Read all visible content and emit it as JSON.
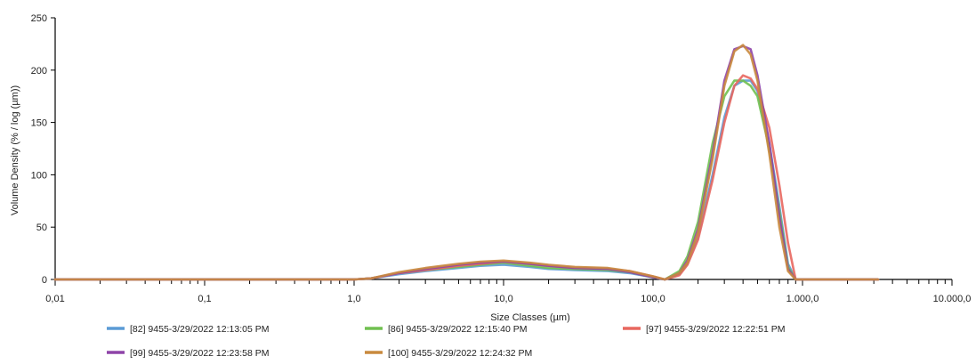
{
  "chart_data": {
    "type": "line",
    "xscale": "log",
    "xlim": [
      0.01,
      10000
    ],
    "ylim": [
      0,
      250
    ],
    "grid": false,
    "xlabel": "Size Classes (µm)",
    "ylabel": "Volume Density (% / log (µm))",
    "x_ticks": [
      {
        "value": 0.01,
        "label": "0,01"
      },
      {
        "value": 0.1,
        "label": "0,1"
      },
      {
        "value": 1,
        "label": "1,0"
      },
      {
        "value": 10,
        "label": "10,0"
      },
      {
        "value": 100,
        "label": "100,0"
      },
      {
        "value": 1000,
        "label": "1.000,0"
      },
      {
        "value": 10000,
        "label": "10.000,0"
      }
    ],
    "y_ticks": [
      {
        "value": 0,
        "label": "0"
      },
      {
        "value": 50,
        "label": "50"
      },
      {
        "value": 100,
        "label": "100"
      },
      {
        "value": 150,
        "label": "150"
      },
      {
        "value": 200,
        "label": "200"
      },
      {
        "value": 250,
        "label": "250"
      }
    ],
    "legend_position": "bottom",
    "series": [
      {
        "name": "[82] 9455-3/29/2022 12:13:05 PM",
        "color": "#5b9bd5",
        "x": [
          0.01,
          1.0,
          1.3,
          2,
          3,
          5,
          7,
          10,
          15,
          20,
          30,
          50,
          70,
          100,
          120,
          150,
          170,
          200,
          250,
          300,
          350,
          400,
          450,
          500,
          600,
          700,
          800,
          900,
          3200
        ],
        "y": [
          0,
          0,
          1,
          5,
          8,
          11,
          13,
          14,
          12,
          10,
          9,
          8,
          6,
          2,
          0,
          5,
          15,
          40,
          100,
          155,
          185,
          190,
          190,
          180,
          130,
          70,
          15,
          0,
          0
        ]
      },
      {
        "name": "[86] 9455-3/29/2022 12:15:40 PM",
        "color": "#70c050",
        "x": [
          0.01,
          1.0,
          1.3,
          2,
          3,
          5,
          7,
          10,
          15,
          20,
          30,
          50,
          70,
          100,
          120,
          150,
          170,
          200,
          250,
          300,
          350,
          400,
          450,
          500,
          600,
          700,
          800,
          900,
          3200
        ],
        "y": [
          0,
          0,
          1,
          6,
          9,
          12,
          14,
          16,
          13,
          11,
          10,
          9,
          7,
          2,
          0,
          8,
          22,
          55,
          130,
          175,
          190,
          190,
          185,
          175,
          125,
          65,
          12,
          0,
          0
        ]
      },
      {
        "name": "[97] 9455-3/29/2022 12:22:51 PM",
        "color": "#e8675f",
        "x": [
          0.01,
          1.0,
          1.3,
          2,
          3,
          5,
          7,
          10,
          15,
          20,
          30,
          50,
          70,
          100,
          120,
          150,
          170,
          200,
          250,
          300,
          350,
          400,
          450,
          500,
          600,
          700,
          800,
          900,
          3200
        ],
        "y": [
          0,
          0,
          1,
          6,
          9,
          13,
          15,
          17,
          15,
          13,
          11,
          10,
          8,
          3,
          0,
          4,
          14,
          38,
          95,
          150,
          185,
          195,
          192,
          182,
          145,
          90,
          35,
          0,
          0
        ]
      },
      {
        "name": "[99] 9455-3/29/2022 12:23:58 PM",
        "color": "#8e44a8",
        "x": [
          0.01,
          1.0,
          1.3,
          2,
          3,
          5,
          7,
          10,
          15,
          20,
          30,
          50,
          70,
          100,
          120,
          150,
          170,
          200,
          250,
          300,
          350,
          400,
          450,
          500,
          600,
          700,
          800,
          900,
          3200
        ],
        "y": [
          0,
          0,
          1,
          6,
          10,
          14,
          16,
          17,
          15,
          13,
          11,
          10,
          7,
          2,
          0,
          6,
          18,
          48,
          120,
          190,
          220,
          223,
          220,
          195,
          130,
          60,
          10,
          0,
          0
        ]
      },
      {
        "name": "[100] 9455-3/29/2022 12:24:32 PM",
        "color": "#c98a3e",
        "x": [
          0.01,
          1.0,
          1.3,
          2,
          3,
          5,
          7,
          10,
          15,
          20,
          30,
          50,
          70,
          100,
          120,
          150,
          170,
          200,
          250,
          300,
          350,
          400,
          450,
          500,
          600,
          700,
          800,
          900,
          3200
        ],
        "y": [
          0,
          0,
          1,
          7,
          11,
          15,
          17,
          18,
          16,
          14,
          12,
          11,
          8,
          3,
          0,
          6,
          16,
          45,
          115,
          185,
          218,
          224,
          215,
          190,
          120,
          50,
          8,
          0,
          0
        ]
      }
    ]
  }
}
